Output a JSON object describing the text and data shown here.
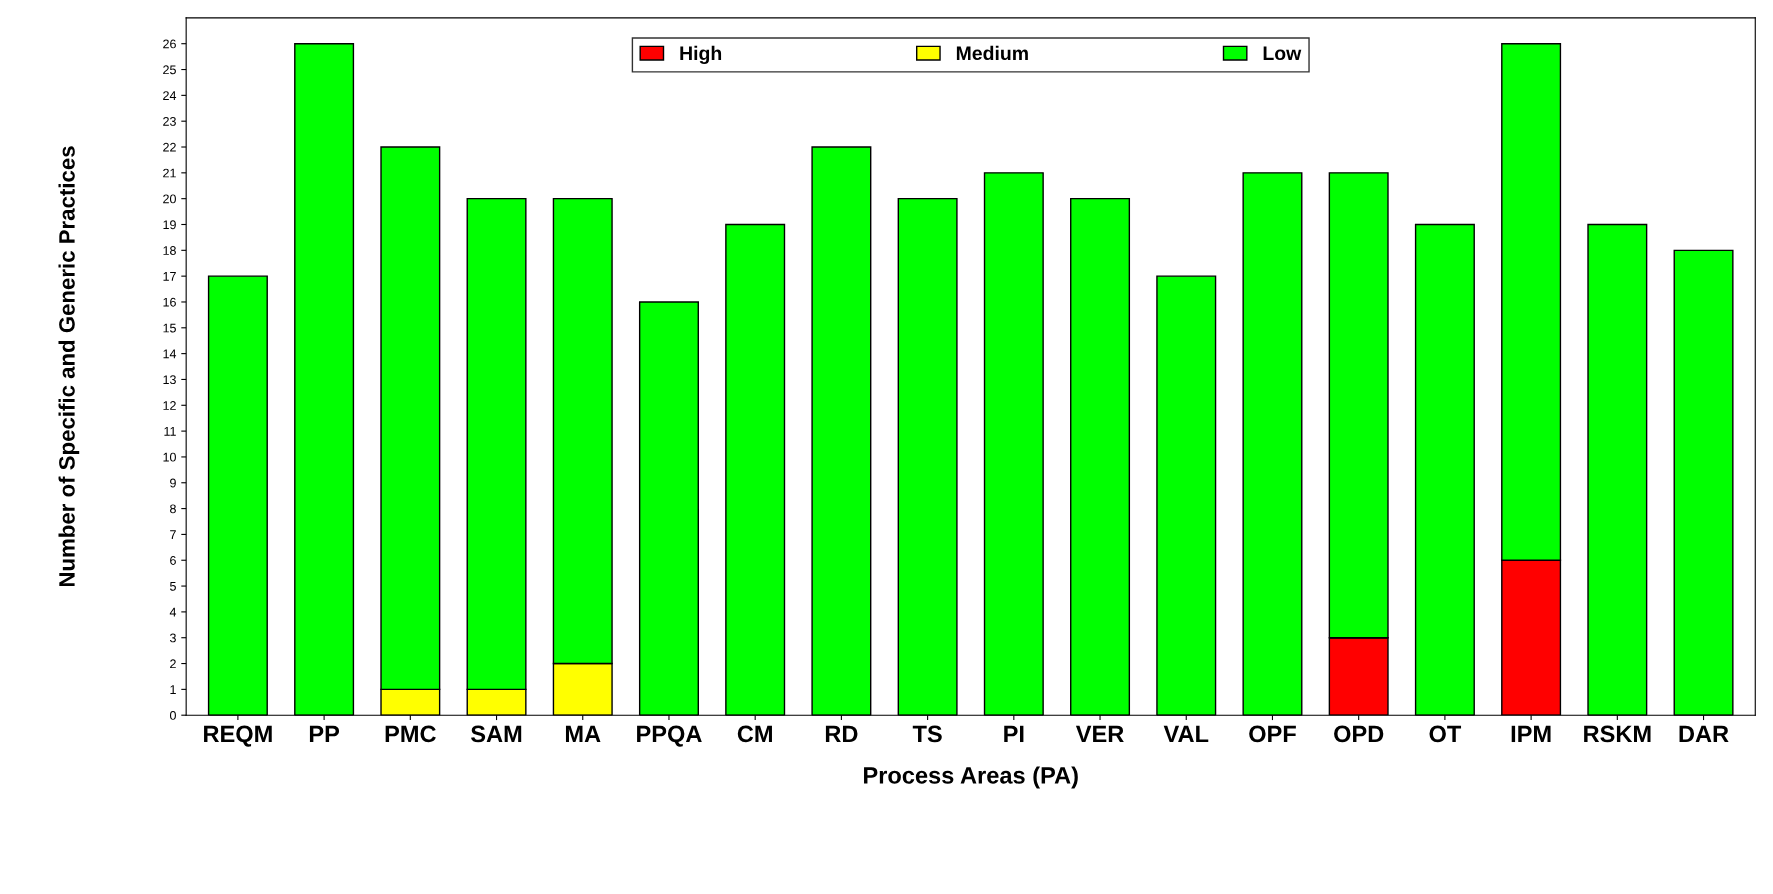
{
  "chart_data": {
    "type": "bar",
    "stacked": true,
    "xlabel": "Process Areas (PA)",
    "ylabel": "Number of Specific and Generic Practices",
    "categories": [
      "REQM",
      "PP",
      "PMC",
      "SAM",
      "MA",
      "PPQA",
      "CM",
      "RD",
      "TS",
      "PI",
      "VER",
      "VAL",
      "OPF",
      "OPD",
      "OT",
      "IPM",
      "RSKM",
      "DAR"
    ],
    "series": [
      {
        "name": "High",
        "color": "#ff0000",
        "values": [
          0,
          0,
          0,
          0,
          0,
          0,
          0,
          0,
          0,
          0,
          0,
          0,
          0,
          3,
          0,
          6,
          0,
          0
        ]
      },
      {
        "name": "Medium",
        "color": "#ffff00",
        "values": [
          0,
          0,
          1,
          1,
          2,
          0,
          0,
          0,
          0,
          0,
          0,
          0,
          0,
          0,
          0,
          0,
          0,
          0
        ]
      },
      {
        "name": "Low",
        "color": "#00ff00",
        "values": [
          17,
          26,
          21,
          19,
          18,
          16,
          19,
          22,
          20,
          21,
          20,
          17,
          21,
          18,
          19,
          20,
          19,
          18
        ]
      }
    ],
    "ylim": [
      0,
      27
    ],
    "yticks": [
      0,
      1,
      2,
      3,
      4,
      5,
      6,
      7,
      8,
      9,
      10,
      11,
      12,
      13,
      14,
      15,
      16,
      17,
      18,
      19,
      20,
      21,
      22,
      23,
      24,
      25,
      26
    ],
    "grid": false,
    "legend": "top"
  }
}
